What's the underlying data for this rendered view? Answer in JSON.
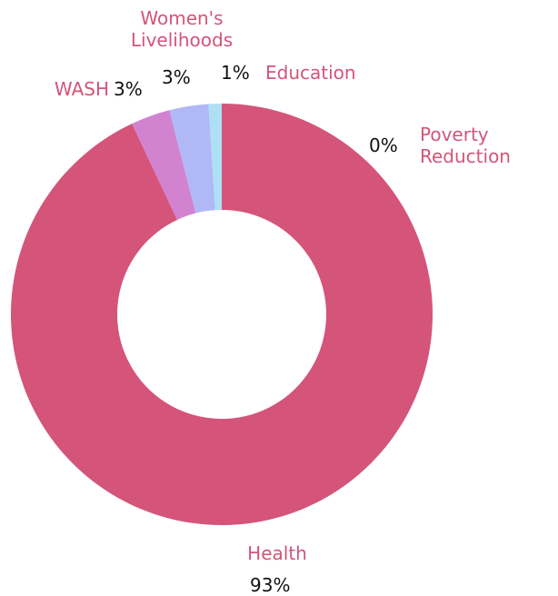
{
  "chart_data": {
    "type": "donut",
    "categories": [
      "Poverty Reduction",
      "Health",
      "WASH",
      "Women's Livelihoods",
      "Education"
    ],
    "values": [
      0,
      93,
      3,
      3,
      1
    ],
    "value_labels": [
      "0%",
      "93%",
      "3%",
      "3%",
      "1%"
    ],
    "colors": [
      "#f0c070",
      "#d4547a",
      "#d183d0",
      "#b0b8f5",
      "#aee0f5"
    ]
  }
}
